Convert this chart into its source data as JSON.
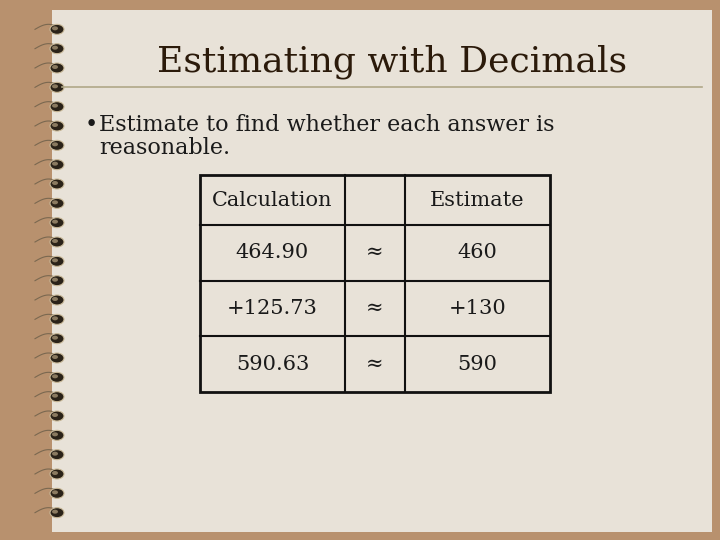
{
  "title": "Estimating with Decimals",
  "table_headers": [
    "Calculation",
    "",
    "Estimate"
  ],
  "table_rows": [
    [
      "464.90",
      "≈",
      "460"
    ],
    [
      "+125.73",
      "≈",
      "+130"
    ],
    [
      "590.63",
      "≈",
      "590"
    ]
  ],
  "bg_color": "#b8916e",
  "page_color": "#e8e2d8",
  "title_color": "#2b1a0a",
  "text_color": "#1a1a1a",
  "table_border_color": "#111111",
  "title_fontsize": 26,
  "bullet_fontsize": 16,
  "table_header_fontsize": 15,
  "table_data_fontsize": 15,
  "spiral_dark": "#3a3020",
  "spiral_mid": "#7a6850",
  "spiral_light": "#c8b898",
  "line_color": "#b0a888"
}
